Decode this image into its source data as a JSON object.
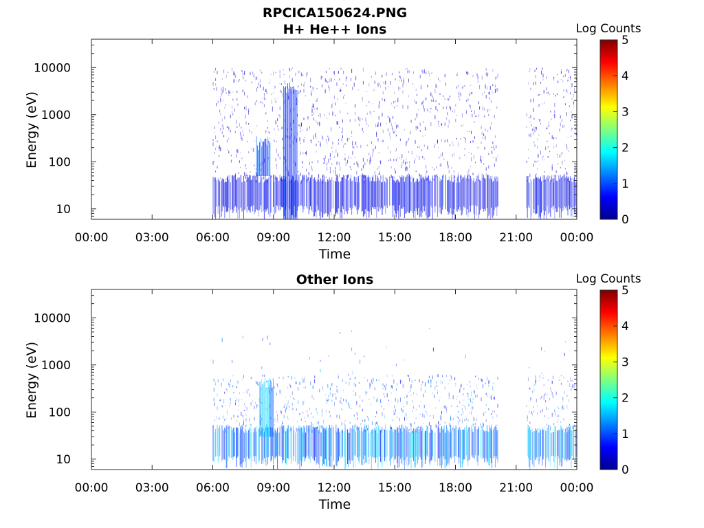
{
  "figure": {
    "title": "RPCICA150624.PNG"
  },
  "chart_data": [
    {
      "type": "heatmap",
      "title": "H+ He++ Ions",
      "xlabel": "Time",
      "ylabel": "Energy (eV)",
      "x_ticks": [
        "00:00",
        "03:00",
        "06:00",
        "09:00",
        "12:00",
        "15:00",
        "18:00",
        "21:00",
        "00:00"
      ],
      "x_range_hours": [
        0,
        24
      ],
      "y_scale": "log",
      "y_ticks": [
        10,
        100,
        1000,
        10000
      ],
      "y_tick_labels": [
        "10",
        "100",
        "1000",
        "10000"
      ],
      "y_range": [
        6,
        40000
      ],
      "colorbar": {
        "label": "Log Counts",
        "range": [
          0,
          5
        ],
        "ticks": [
          "0",
          "1",
          "2",
          "3",
          "4",
          "5"
        ],
        "colormap": "jet"
      },
      "data_coverage_hours": [
        [
          6.0,
          20.1
        ],
        [
          21.5,
          24.0
        ]
      ],
      "dense_energy_band_eV": [
        10,
        45
      ],
      "features": [
        {
          "time": "08:30",
          "energy_eV": [
            50,
            350
          ],
          "level": 1.2
        },
        {
          "time": "09:50",
          "energy_eV": [
            6,
            5000
          ],
          "level": 1.0
        }
      ],
      "typical_level": 0.6
    },
    {
      "type": "heatmap",
      "title": "Other Ions",
      "xlabel": "Time",
      "ylabel": "Energy (eV)",
      "x_ticks": [
        "00:00",
        "03:00",
        "06:00",
        "09:00",
        "12:00",
        "15:00",
        "18:00",
        "21:00",
        "00:00"
      ],
      "x_range_hours": [
        0,
        24
      ],
      "y_scale": "log",
      "y_ticks": [
        10,
        100,
        1000,
        10000
      ],
      "y_tick_labels": [
        "10",
        "100",
        "1000",
        "10000"
      ],
      "y_range": [
        6,
        40000
      ],
      "colorbar": {
        "label": "Log Counts",
        "range": [
          0,
          5
        ],
        "ticks": [
          "0",
          "1",
          "2",
          "3",
          "4",
          "5"
        ],
        "colormap": "jet"
      },
      "data_coverage_hours": [
        [
          6.0,
          20.1
        ],
        [
          21.5,
          24.0
        ]
      ],
      "dense_energy_band_eV": [
        10,
        45
      ],
      "features": [
        {
          "time": "08:40",
          "energy_eV": [
            30,
            600
          ],
          "level": 1.8
        }
      ],
      "typical_level": 1.3
    }
  ]
}
